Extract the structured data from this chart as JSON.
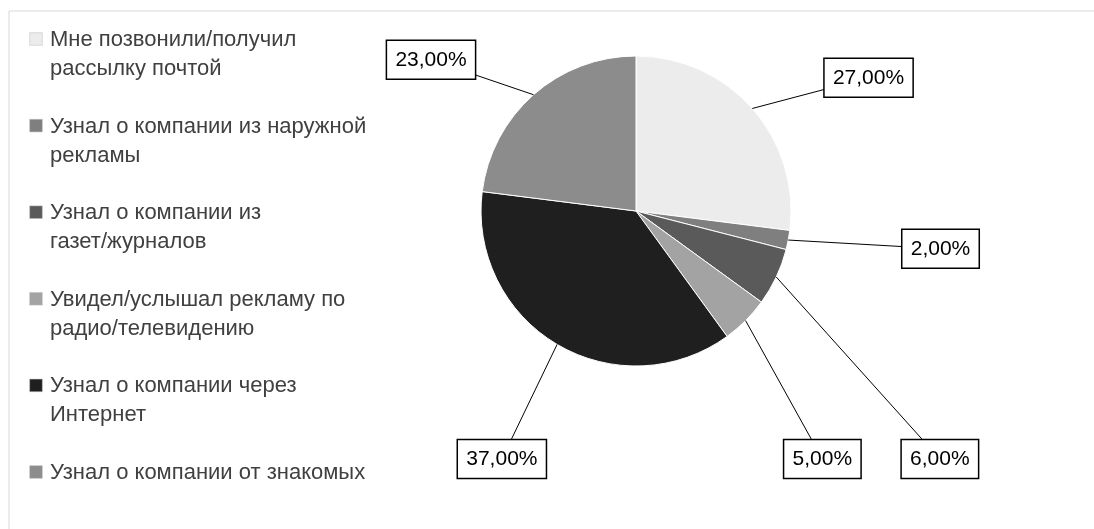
{
  "chart_data": {
    "type": "pie",
    "categories": [
      "Мне позвонили/получил рассылку почтой",
      "Узнал о компании из наружной рекламы",
      "Узнал о компании из газет/журналов",
      "Увидел/услышал рекламу по радио/телевидению",
      "Узнал о компании через Интернет",
      "Узнал о компании от знакомых"
    ],
    "values": [
      27,
      2,
      6,
      5,
      37,
      23
    ],
    "colors": [
      "#ececec",
      "#7f7f7f",
      "#5a5a5a",
      "#a3a3a3",
      "#1f1f1f",
      "#8c8c8c"
    ],
    "value_labels": [
      "27,00%",
      "2,00%",
      "6,00%",
      "5,00%",
      "37,00%",
      "23,00%"
    ],
    "legend": "left"
  }
}
